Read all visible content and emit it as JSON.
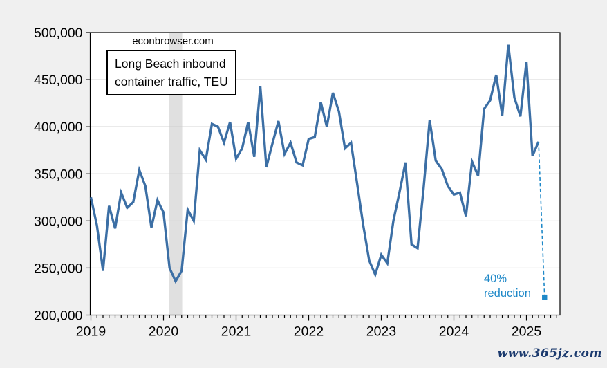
{
  "header": {
    "source_label": "econbrowser.com"
  },
  "title_box": {
    "line1": "Long Beach inbound",
    "line2": "container traffic, TEU"
  },
  "annotation": {
    "line1": "40%",
    "line2": "reduction"
  },
  "watermark": "www.365jz.com",
  "colors": {
    "series": "#3c6fa5",
    "projection": "#1e88c8",
    "recession_band": "#e0e0e0",
    "grid": "#c8c8c8",
    "axis": "#000000",
    "background": "#f0f0f0",
    "plot_background": "#ffffff",
    "watermark": "#1b3a6e",
    "text": "#000000"
  },
  "chart_data": {
    "type": "line",
    "title": "Long Beach inbound container traffic, TEU",
    "source_note": "econbrowser.com",
    "xlabel": "",
    "ylabel": "TEU",
    "ylim": [
      200000,
      500000
    ],
    "y_tick_step": 50000,
    "y_tick_labels": [
      "200,000",
      "250,000",
      "300,000",
      "350,000",
      "400,000",
      "450,000",
      "500,000"
    ],
    "x_tick_labels": [
      "2019",
      "2020",
      "2021",
      "2022",
      "2023",
      "2024",
      "2025"
    ],
    "grid": "horizontal",
    "legend": "none",
    "frequency": "monthly",
    "categories": [
      "2019-01",
      "2019-02",
      "2019-03",
      "2019-04",
      "2019-05",
      "2019-06",
      "2019-07",
      "2019-08",
      "2019-09",
      "2019-10",
      "2019-11",
      "2019-12",
      "2020-01",
      "2020-02",
      "2020-03",
      "2020-04",
      "2020-05",
      "2020-06",
      "2020-07",
      "2020-08",
      "2020-09",
      "2020-10",
      "2020-11",
      "2020-12",
      "2021-01",
      "2021-02",
      "2021-03",
      "2021-04",
      "2021-05",
      "2021-06",
      "2021-07",
      "2021-08",
      "2021-09",
      "2021-10",
      "2021-11",
      "2021-12",
      "2022-01",
      "2022-02",
      "2022-03",
      "2022-04",
      "2022-05",
      "2022-06",
      "2022-07",
      "2022-08",
      "2022-09",
      "2022-10",
      "2022-11",
      "2022-12",
      "2023-01",
      "2023-02",
      "2023-03",
      "2023-04",
      "2023-05",
      "2023-06",
      "2023-07",
      "2023-08",
      "2023-09",
      "2023-10",
      "2023-11",
      "2023-12",
      "2024-01",
      "2024-02",
      "2024-03",
      "2024-04",
      "2024-05",
      "2024-06",
      "2024-07",
      "2024-08",
      "2024-09",
      "2024-10",
      "2024-11",
      "2024-12",
      "2025-01",
      "2025-02",
      "2025-03"
    ],
    "series": [
      {
        "name": "Long Beach inbound container traffic (TEU)",
        "values": [
          325000,
          295000,
          247000,
          316000,
          292000,
          330000,
          314000,
          320000,
          354000,
          337000,
          293000,
          322000,
          309000,
          250000,
          236000,
          247000,
          312000,
          300000,
          375000,
          365000,
          403000,
          400000,
          383000,
          405000,
          366000,
          377000,
          405000,
          368000,
          443000,
          357000,
          382000,
          406000,
          371000,
          383000,
          362000,
          359000,
          387000,
          389000,
          426000,
          400000,
          436000,
          416000,
          377000,
          383000,
          340000,
          296000,
          258000,
          243000,
          264000,
          255000,
          300000,
          330000,
          362000,
          275000,
          271000,
          335000,
          407000,
          364000,
          355000,
          337000,
          328000,
          330000,
          305000,
          363000,
          348000,
          419000,
          428000,
          455000,
          412000,
          487000,
          431000,
          411000,
          469000,
          369000,
          384000
        ]
      }
    ],
    "projection": {
      "category": "2025-04",
      "value": 219000,
      "line_style": "dashed",
      "marker": "square",
      "label": "40% reduction"
    },
    "recession_band": {
      "from": "2020-02",
      "to": "2020-04"
    }
  }
}
